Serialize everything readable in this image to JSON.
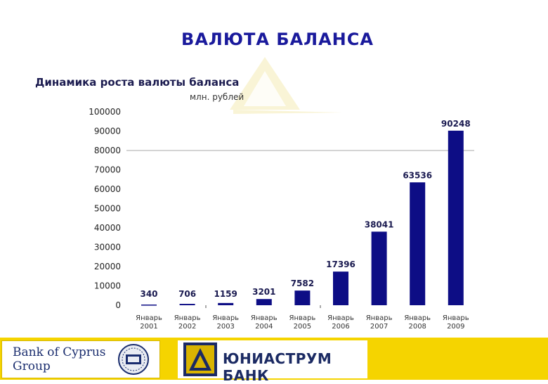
{
  "slide": {
    "title": "ВАЛЮТА БАЛАНСА"
  },
  "chart_data": {
    "type": "bar",
    "title": "Динамика роста валюты баланса",
    "unit": "млн. рублей",
    "categories": [
      [
        "Январь",
        "2001"
      ],
      [
        "Январь",
        "2002"
      ],
      [
        "Январь",
        "2003"
      ],
      [
        "Январь",
        "2004"
      ],
      [
        "Январь",
        "2005"
      ],
      [
        "Январь",
        "2006"
      ],
      [
        "Январь",
        "2007"
      ],
      [
        "Январь",
        "2008"
      ],
      [
        "Январь",
        "2009"
      ]
    ],
    "values": [
      340,
      706,
      1159,
      3201,
      7582,
      17396,
      38041,
      63536,
      90248
    ],
    "value_labels": [
      "340",
      "706",
      "1159",
      "3201",
      "7582",
      "17396",
      "38041",
      "63536",
      "90248"
    ],
    "y_ticks": [
      "0",
      "10000",
      "20000",
      "30000",
      "40000",
      "50000",
      "60000",
      "70000",
      "80000",
      "90000",
      "100000"
    ],
    "ylim": [
      0,
      100000
    ],
    "reference_line": 80000,
    "bar_color": "#0d0d85"
  },
  "footer": {
    "bank_of_cyprus": {
      "line1": "Bank of Cyprus",
      "line2": "Group"
    },
    "uniastrum": {
      "name": "ЮНИАСТРУМ  БАНК"
    }
  },
  "colors": {
    "title": "#1a1a9c",
    "footer_band": "#f5d400",
    "logo_navy": "#1b2a63"
  }
}
